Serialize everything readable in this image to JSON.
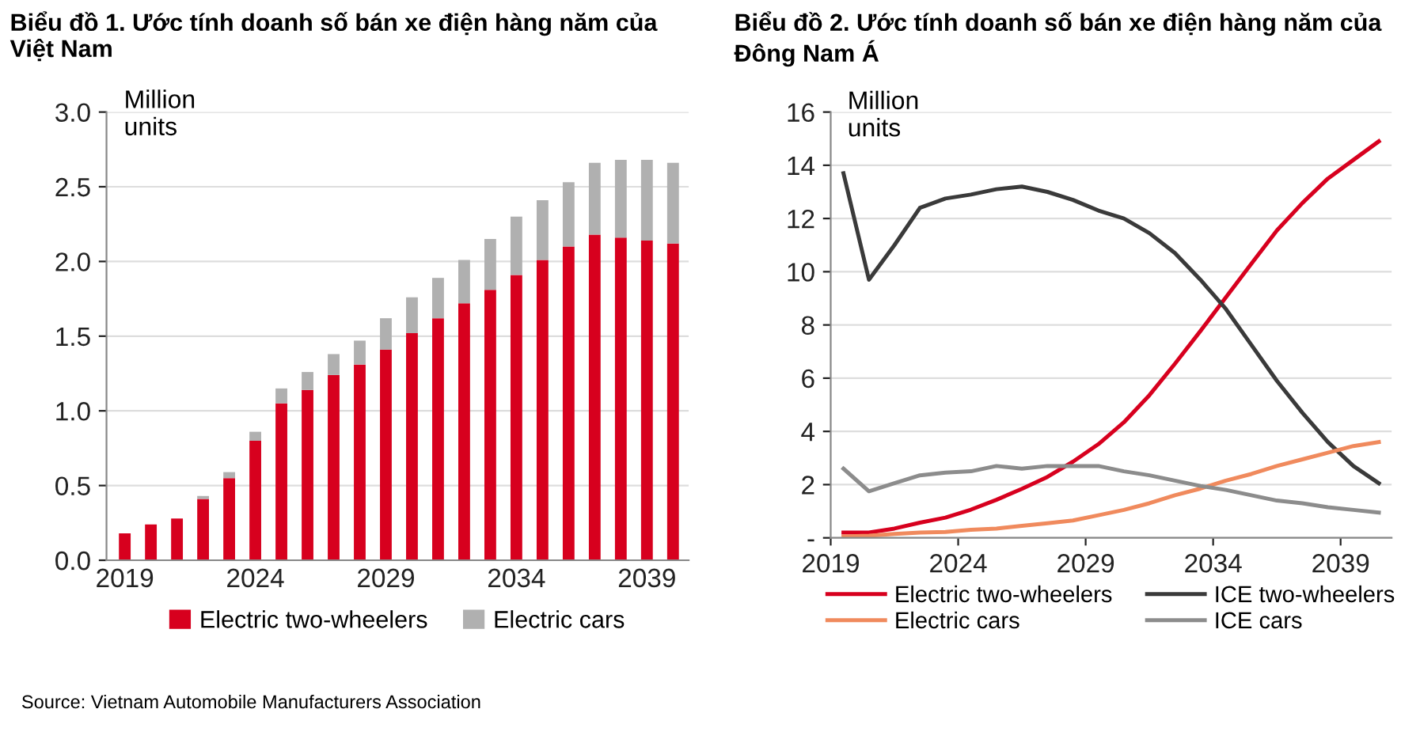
{
  "chart_data": [
    {
      "type": "bar",
      "title": "Biểu đồ 1. Ước tính doanh số bán xe điện hàng năm của Việt Nam",
      "ylabel": "Million\nunits",
      "stacked": true,
      "grid": "y",
      "legend": "bottom",
      "categories": [
        "2019",
        null,
        null,
        null,
        null,
        "2024",
        null,
        null,
        null,
        null,
        "2029",
        null,
        null,
        null,
        null,
        "2034",
        null,
        null,
        null,
        null,
        "2039",
        null
      ],
      "series": [
        {
          "name": "Electric two-wheelers",
          "color": "#d7001e",
          "values": [
            0.18,
            0.24,
            0.28,
            0.41,
            0.55,
            0.8,
            1.05,
            1.14,
            1.24,
            1.31,
            1.41,
            1.52,
            1.62,
            1.72,
            1.81,
            1.91,
            2.01,
            2.1,
            2.18,
            2.16,
            2.14,
            2.12
          ]
        },
        {
          "name": "Electric cars",
          "color": "#b0b0b0",
          "values": [
            0,
            0,
            0,
            0.02,
            0.04,
            0.06,
            0.1,
            0.12,
            0.14,
            0.16,
            0.21,
            0.24,
            0.27,
            0.29,
            0.34,
            0.39,
            0.4,
            0.43,
            0.48,
            0.52,
            0.54,
            0.54
          ]
        }
      ],
      "ylim": [
        0,
        3
      ],
      "yticks": [
        {
          "value": 0,
          "label": "0.0"
        },
        0.5,
        {
          "value": 1,
          "label": "1.0"
        },
        1.5,
        {
          "value": 2,
          "label": "2.0"
        },
        2.5,
        {
          "value": 3,
          "label": "3.0"
        }
      ],
      "annotations": [
        "Source: Vietnam Automobile Manufacturers Association"
      ]
    },
    {
      "type": "line",
      "title": "Biểu đồ 2. Ước tính doanh số bán xe điện hàng năm của Đông Nam Á",
      "ylabel": "Million\nunits",
      "grid": "y",
      "legend": "bottom",
      "line_style": "solid",
      "x": [
        2019.5,
        2020.5,
        2021.5,
        2022.5,
        2023.5,
        2024.5,
        2025.5,
        2026.5,
        2027.5,
        2028.5,
        2029.5,
        2030.5,
        2031.5,
        2032.5,
        2033.5,
        2034.5,
        2035.5,
        2036.5,
        2037.5,
        2038.5,
        2039.5,
        2040.5
      ],
      "series": [
        {
          "name": "Electric two-wheelers",
          "color": "#d7001e",
          "values": [
            0.2,
            0.2,
            0.35,
            0.57,
            0.76,
            1.06,
            1.43,
            1.84,
            2.29,
            2.86,
            3.52,
            4.34,
            5.36,
            6.54,
            7.77,
            9.04,
            10.3,
            11.55,
            12.58,
            13.5,
            14.2,
            14.9
          ]
        },
        {
          "name": "ICE two-wheelers",
          "color": "#3a3a3a",
          "values": [
            13.7,
            9.7,
            11.0,
            12.4,
            12.75,
            12.9,
            13.1,
            13.2,
            13.0,
            12.7,
            12.3,
            12.0,
            11.45,
            10.7,
            9.7,
            8.6,
            7.25,
            5.9,
            4.7,
            3.6,
            2.7,
            2.05
          ]
        },
        {
          "name": "Electric cars",
          "color": "#f08a5d",
          "values": [
            0.05,
            0.08,
            0.15,
            0.2,
            0.22,
            0.3,
            0.35,
            0.45,
            0.55,
            0.65,
            0.85,
            1.05,
            1.3,
            1.6,
            1.85,
            2.15,
            2.4,
            2.7,
            2.95,
            3.2,
            3.45,
            3.6
          ]
        },
        {
          "name": "ICE cars",
          "color": "#8c8c8c",
          "values": [
            2.6,
            1.75,
            2.05,
            2.35,
            2.45,
            2.5,
            2.7,
            2.6,
            2.7,
            2.7,
            2.7,
            2.5,
            2.35,
            2.15,
            1.95,
            1.8,
            1.6,
            1.4,
            1.3,
            1.15,
            1.05,
            0.95
          ]
        }
      ],
      "xlim": [
        2019,
        2041
      ],
      "xticks": [
        2019,
        2024,
        2029,
        2034,
        2039
      ],
      "ylim": [
        0,
        16
      ],
      "yticks": [
        {
          "value": 0,
          "label": "-"
        },
        2,
        4,
        6,
        8,
        10,
        12,
        14,
        16
      ]
    }
  ]
}
